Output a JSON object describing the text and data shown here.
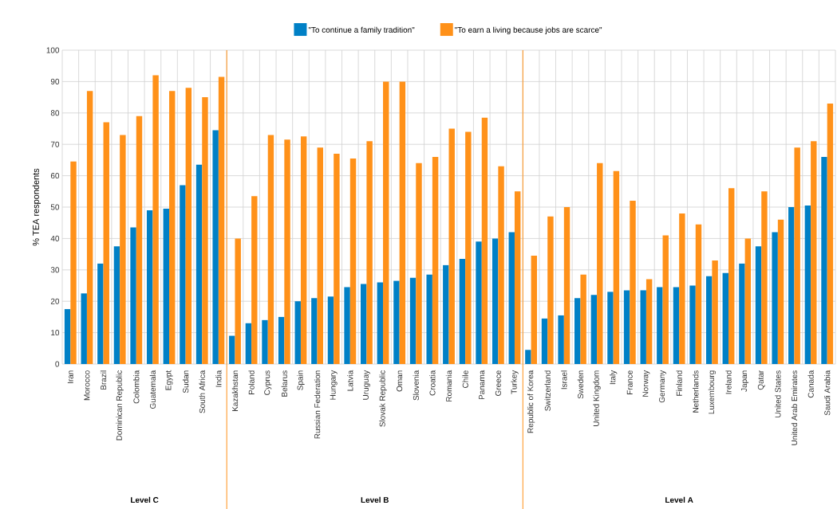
{
  "chart_data": {
    "type": "bar",
    "ylabel": "% TEA respondents",
    "categories": [
      "Iran",
      "Morocco",
      "Brazil",
      "Dominican Republic",
      "Colombia",
      "Guatemala",
      "Egypt",
      "Sudan",
      "South Africa",
      "India",
      "Kazakhstan",
      "Poland",
      "Cyprus",
      "Belarus",
      "Spain",
      "Russian Federation",
      "Hungary",
      "Latvia",
      "Uruguay",
      "Slovak Republic",
      "Oman",
      "Slovenia",
      "Croatia",
      "Romania",
      "Chile",
      "Panama",
      "Greece",
      "Turkey",
      "Republic of Korea",
      "Switzerland",
      "Israel",
      "Sweden",
      "United Kingdom",
      "Italy",
      "France",
      "Norway",
      "Germany",
      "Finland",
      "Netherlands",
      "Luxembourg",
      "Ireland",
      "Japan",
      "Qatar",
      "United States",
      "United Arab Emirates",
      "Canada",
      "Saudi Arabia"
    ],
    "series": [
      {
        "name": "\"To continue a family tradition\"",
        "color": "#0080c6",
        "values": [
          17.5,
          22.5,
          32,
          37.5,
          43.5,
          49,
          49.5,
          57,
          63.5,
          74.5,
          9,
          13,
          14,
          15,
          20,
          21,
          21.5,
          24.5,
          25.5,
          26,
          26.5,
          27.5,
          28.5,
          31.5,
          33.5,
          39,
          40,
          42,
          4.5,
          14.5,
          15.5,
          21,
          22,
          23,
          23.5,
          23.5,
          24.5,
          24.5,
          25,
          28,
          29,
          32,
          37.5,
          42,
          50,
          50.5,
          66
        ]
      },
      {
        "name": "\"To earn a living because jobs are scarce\"",
        "color": "#ff9119",
        "values": [
          64.5,
          87,
          77,
          73,
          79,
          92,
          87,
          88,
          85,
          91.5,
          40,
          53.5,
          73,
          71.5,
          72.5,
          69,
          67,
          65.5,
          71,
          90,
          90,
          64,
          66,
          75,
          74,
          78.5,
          63,
          55,
          34.5,
          47,
          50,
          28.5,
          64,
          61.5,
          52,
          27,
          41,
          48,
          44.5,
          33,
          56,
          40,
          55,
          46,
          69,
          71,
          83
        ]
      }
    ],
    "ylim": [
      0,
      100
    ],
    "yticks": [
      0,
      10,
      20,
      30,
      40,
      50,
      60,
      70,
      80,
      90,
      100
    ],
    "grid": true,
    "legend": "top",
    "annotations": [
      "Level C",
      "Level B",
      "Level A"
    ]
  }
}
